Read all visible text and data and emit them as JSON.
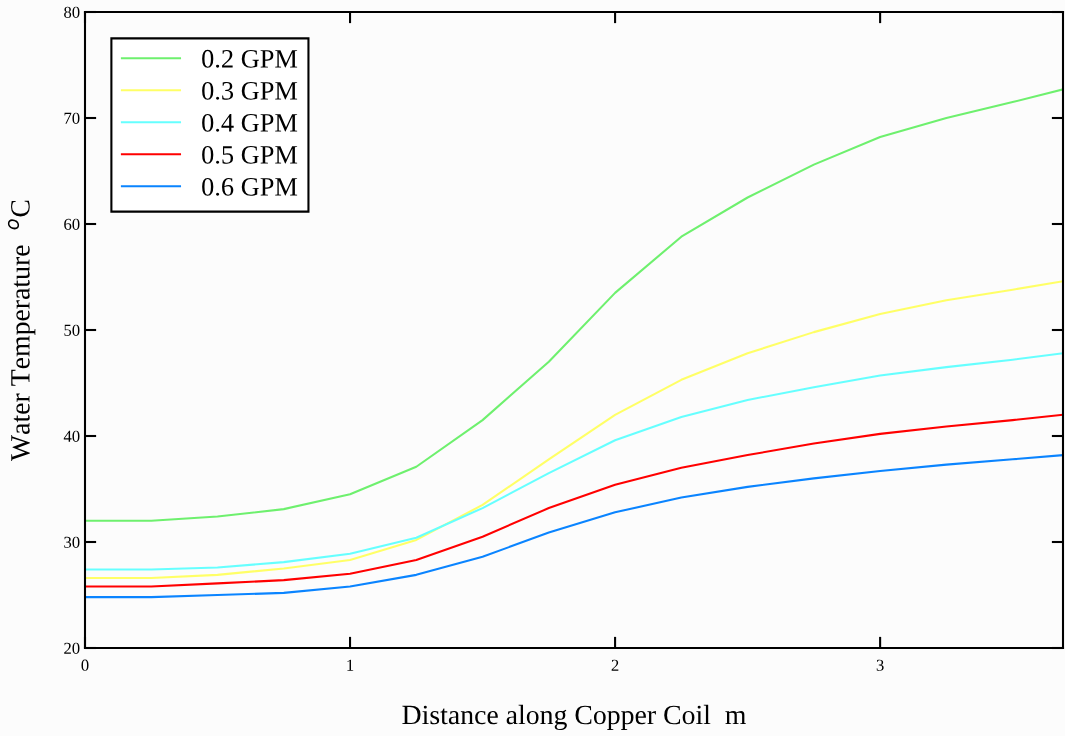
{
  "chart_data": {
    "type": "line",
    "xlabel": "Distance along Copper Coil  m",
    "ylabel": "Water Temperature  $^{o}$C",
    "x": [
      0,
      0.25,
      0.5,
      0.75,
      1,
      1.25,
      1.5,
      1.75,
      2,
      2.25,
      2.5,
      2.75,
      3,
      3.25,
      3.5,
      3.69
    ],
    "series": [
      {
        "name": "0.2 GPM",
        "color": "#6ef06e",
        "values": [
          32.0,
          32.0,
          32.4,
          33.1,
          34.5,
          37.1,
          41.5,
          47.0,
          53.5,
          58.8,
          62.5,
          65.6,
          68.2,
          70.0,
          71.5,
          72.7
        ]
      },
      {
        "name": "0.3 GPM",
        "color": "#ffff66",
        "values": [
          26.6,
          26.6,
          26.9,
          27.5,
          28.3,
          30.2,
          33.5,
          37.8,
          42.0,
          45.3,
          47.8,
          49.8,
          51.5,
          52.8,
          53.8,
          54.6
        ]
      },
      {
        "name": "0.4 GPM",
        "color": "#66ffff",
        "values": [
          27.4,
          27.4,
          27.6,
          28.1,
          28.9,
          30.4,
          33.2,
          36.5,
          39.6,
          41.8,
          43.4,
          44.6,
          45.7,
          46.5,
          47.2,
          47.8
        ]
      },
      {
        "name": "0.5 GPM",
        "color": "#ff0000",
        "values": [
          25.8,
          25.8,
          26.1,
          26.4,
          27.0,
          28.3,
          30.5,
          33.2,
          35.4,
          37.0,
          38.2,
          39.3,
          40.2,
          40.9,
          41.5,
          42.0
        ]
      },
      {
        "name": "0.6 GPM",
        "color": "#0a84ff",
        "values": [
          24.8,
          24.8,
          25.0,
          25.2,
          25.8,
          26.9,
          28.6,
          30.9,
          32.8,
          34.2,
          35.2,
          36.0,
          36.7,
          37.3,
          37.8,
          38.2
        ]
      }
    ],
    "xlim": [
      0,
      3.69
    ],
    "ylim": [
      20,
      80
    ],
    "xticks": [
      0,
      1,
      2,
      3
    ],
    "yticks": [
      20,
      30,
      40,
      50,
      60,
      70,
      80
    ],
    "legend": "top left",
    "grid": false
  }
}
